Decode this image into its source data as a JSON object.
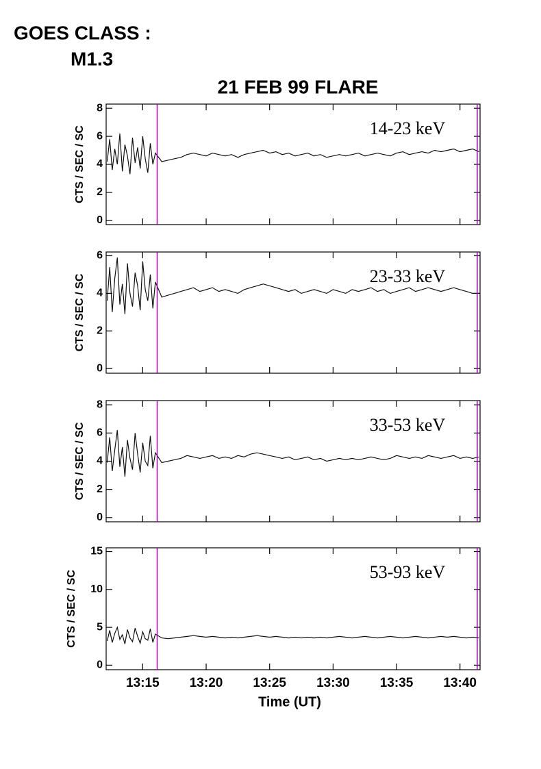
{
  "chart_data": [
    {
      "type": "line",
      "title": "21 FEB 99 FLARE",
      "annotations": [
        "GOES CLASS :",
        "M1.3"
      ],
      "ylabel": "CTS / SEC / SC",
      "x": [
        12.2,
        12.4,
        12.6,
        12.8,
        13,
        13.2,
        13.4,
        13.6,
        13.8,
        14,
        14.2,
        14.4,
        14.6,
        14.8,
        15,
        15.2,
        15.4,
        15.6,
        15.8,
        16,
        16.5,
        17,
        17.5,
        18,
        18.5,
        19,
        19.5,
        20,
        20.5,
        21,
        21.5,
        22,
        22.5,
        23,
        23.5,
        24,
        24.5,
        25,
        25.5,
        26,
        26.5,
        27,
        27.5,
        28,
        28.5,
        29,
        29.5,
        30,
        30.5,
        31,
        31.5,
        32,
        32.5,
        33,
        33.5,
        34,
        34.5,
        35,
        35.5,
        36,
        36.5,
        37,
        37.5,
        38,
        38.5,
        39,
        39.5,
        40,
        40.5,
        41,
        41.5
      ],
      "series": [
        {
          "name": "14-23 keV",
          "color": "#111111",
          "values": [
            4.2,
            5.8,
            3.6,
            5.1,
            4.0,
            6.2,
            3.5,
            5.4,
            4.6,
            3.3,
            5.9,
            4.1,
            5.2,
            3.7,
            6.0,
            4.4,
            3.4,
            5.5,
            4.0,
            4.8,
            4.2,
            4.3,
            4.4,
            4.5,
            4.7,
            4.8,
            4.7,
            4.6,
            4.8,
            4.7,
            4.6,
            4.7,
            4.5,
            4.7,
            4.8,
            4.9,
            5.0,
            4.8,
            4.9,
            4.7,
            4.8,
            4.6,
            4.7,
            4.8,
            4.6,
            4.7,
            4.5,
            4.6,
            4.7,
            4.6,
            4.7,
            4.8,
            4.6,
            4.7,
            4.8,
            4.7,
            4.6,
            4.8,
            4.9,
            4.7,
            4.8,
            4.9,
            4.8,
            5.0,
            4.9,
            5.0,
            5.1,
            4.9,
            5.0,
            5.1,
            4.9
          ]
        }
      ],
      "xlim": [
        12.12,
        41.58
      ],
      "ylim": [
        -0.3,
        8.3
      ],
      "yticks": [
        0,
        2,
        4,
        6,
        8
      ],
      "vlines": [
        16.14,
        41.36
      ],
      "vline_color": "#b000c8"
    },
    {
      "type": "line",
      "ylabel": "CTS / SEC / SC",
      "x": [
        12.2,
        12.4,
        12.6,
        12.8,
        13,
        13.2,
        13.4,
        13.6,
        13.8,
        14,
        14.2,
        14.4,
        14.6,
        14.8,
        15,
        15.2,
        15.4,
        15.6,
        15.8,
        16,
        16.5,
        17,
        17.5,
        18,
        18.5,
        19,
        19.5,
        20,
        20.5,
        21,
        21.5,
        22,
        22.5,
        23,
        23.5,
        24,
        24.5,
        25,
        25.5,
        26,
        26.5,
        27,
        27.5,
        28,
        28.5,
        29,
        29.5,
        30,
        30.5,
        31,
        31.5,
        32,
        32.5,
        33,
        33.5,
        34,
        34.5,
        35,
        35.5,
        36,
        36.5,
        37,
        37.5,
        38,
        38.5,
        39,
        39.5,
        40,
        40.5,
        41,
        41.5
      ],
      "series": [
        {
          "name": "23-33 keV",
          "color": "#111111",
          "values": [
            3.6,
            5.4,
            3.0,
            4.8,
            5.9,
            3.4,
            4.5,
            2.9,
            5.6,
            4.0,
            3.3,
            5.1,
            4.4,
            3.1,
            5.7,
            4.2,
            3.6,
            5.0,
            3.2,
            4.6,
            3.8,
            3.9,
            4.0,
            4.1,
            4.2,
            4.3,
            4.1,
            4.2,
            4.3,
            4.1,
            4.2,
            4.1,
            4.0,
            4.2,
            4.3,
            4.4,
            4.5,
            4.4,
            4.3,
            4.2,
            4.1,
            4.2,
            4.0,
            4.1,
            4.2,
            4.1,
            4.0,
            4.2,
            4.1,
            4.0,
            4.2,
            4.1,
            4.2,
            4.3,
            4.1,
            4.2,
            4.0,
            4.1,
            4.2,
            4.3,
            4.1,
            4.2,
            4.3,
            4.2,
            4.1,
            4.2,
            4.3,
            4.2,
            4.1,
            4.0,
            4.0
          ]
        }
      ],
      "xlim": [
        12.12,
        41.58
      ],
      "ylim": [
        -0.25,
        6.2
      ],
      "yticks": [
        0,
        2,
        4,
        6
      ],
      "vlines": [
        16.14,
        41.36
      ],
      "vline_color": "#b000c8"
    },
    {
      "type": "line",
      "ylabel": "CTS / SEC / SC",
      "x": [
        12.2,
        12.4,
        12.6,
        12.8,
        13,
        13.2,
        13.4,
        13.6,
        13.8,
        14,
        14.2,
        14.4,
        14.6,
        14.8,
        15,
        15.2,
        15.4,
        15.6,
        15.8,
        16,
        16.5,
        17,
        17.5,
        18,
        18.5,
        19,
        19.5,
        20,
        20.5,
        21,
        21.5,
        22,
        22.5,
        23,
        23.5,
        24,
        24.5,
        25,
        25.5,
        26,
        26.5,
        27,
        27.5,
        28,
        28.5,
        29,
        29.5,
        30,
        30.5,
        31,
        31.5,
        32,
        32.5,
        33,
        33.5,
        34,
        34.5,
        35,
        35.5,
        36,
        36.5,
        37,
        37.5,
        38,
        38.5,
        39,
        39.5,
        40,
        40.5,
        41,
        41.5
      ],
      "series": [
        {
          "name": "33-53 keV",
          "color": "#111111",
          "values": [
            3.9,
            5.7,
            3.3,
            4.8,
            6.2,
            3.6,
            5.0,
            2.9,
            5.5,
            4.2,
            3.4,
            6.0,
            4.5,
            3.2,
            5.3,
            4.0,
            3.7,
            5.8,
            3.5,
            4.6,
            3.9,
            4.0,
            4.1,
            4.2,
            4.4,
            4.3,
            4.2,
            4.3,
            4.4,
            4.2,
            4.3,
            4.2,
            4.4,
            4.3,
            4.5,
            4.6,
            4.5,
            4.4,
            4.3,
            4.2,
            4.3,
            4.1,
            4.2,
            4.3,
            4.1,
            4.2,
            4.0,
            4.1,
            4.2,
            4.1,
            4.2,
            4.1,
            4.2,
            4.3,
            4.2,
            4.1,
            4.2,
            4.4,
            4.3,
            4.2,
            4.3,
            4.2,
            4.4,
            4.3,
            4.2,
            4.3,
            4.4,
            4.2,
            4.3,
            4.2,
            4.3
          ]
        }
      ],
      "xlim": [
        12.12,
        41.58
      ],
      "ylim": [
        -0.3,
        8.3
      ],
      "yticks": [
        0,
        2,
        4,
        6,
        8
      ],
      "vlines": [
        16.14,
        41.36
      ],
      "vline_color": "#b000c8"
    },
    {
      "type": "line",
      "ylabel": "CTS / SEC / SC",
      "xlabel": "Time (UT)",
      "x": [
        12.2,
        12.4,
        12.6,
        12.8,
        13,
        13.2,
        13.4,
        13.6,
        13.8,
        14,
        14.2,
        14.4,
        14.6,
        14.8,
        15,
        15.2,
        15.4,
        15.6,
        15.8,
        16,
        16.5,
        17,
        17.5,
        18,
        18.5,
        19,
        19.5,
        20,
        20.5,
        21,
        21.5,
        22,
        22.5,
        23,
        23.5,
        24,
        24.5,
        25,
        25.5,
        26,
        26.5,
        27,
        27.5,
        28,
        28.5,
        29,
        29.5,
        30,
        30.5,
        31,
        31.5,
        32,
        32.5,
        33,
        33.5,
        34,
        34.5,
        35,
        35.5,
        36,
        36.5,
        37,
        37.5,
        38,
        38.5,
        39,
        39.5,
        40,
        40.5,
        41,
        41.5
      ],
      "series": [
        {
          "name": "53-93 keV",
          "color": "#111111",
          "values": [
            3.2,
            4.6,
            3.0,
            4.2,
            5.0,
            3.4,
            4.0,
            2.8,
            4.7,
            3.6,
            3.1,
            4.9,
            3.8,
            2.9,
            4.4,
            3.5,
            3.3,
            4.8,
            3.0,
            4.1,
            3.6,
            3.5,
            3.6,
            3.7,
            3.8,
            3.9,
            3.8,
            3.7,
            3.8,
            3.7,
            3.6,
            3.7,
            3.6,
            3.7,
            3.8,
            3.9,
            3.8,
            3.7,
            3.8,
            3.7,
            3.6,
            3.7,
            3.6,
            3.7,
            3.6,
            3.7,
            3.6,
            3.7,
            3.8,
            3.7,
            3.6,
            3.7,
            3.8,
            3.7,
            3.6,
            3.7,
            3.8,
            3.7,
            3.6,
            3.7,
            3.8,
            3.7,
            3.6,
            3.7,
            3.8,
            3.7,
            3.8,
            3.7,
            3.6,
            3.7,
            3.6
          ]
        }
      ],
      "xlim": [
        12.12,
        41.58
      ],
      "ylim": [
        -0.6,
        15.5
      ],
      "yticks": [
        0,
        5,
        10,
        15
      ],
      "xticks": [
        {
          "value": 15,
          "label": "13:15"
        },
        {
          "value": 20,
          "label": "13:20"
        },
        {
          "value": 25,
          "label": "13:25"
        },
        {
          "value": 30,
          "label": "13:30"
        },
        {
          "value": 35,
          "label": "13:35"
        },
        {
          "value": 40,
          "label": "13:40"
        }
      ],
      "vlines": [
        16.14,
        41.36
      ],
      "vline_color": "#b000c8"
    }
  ]
}
